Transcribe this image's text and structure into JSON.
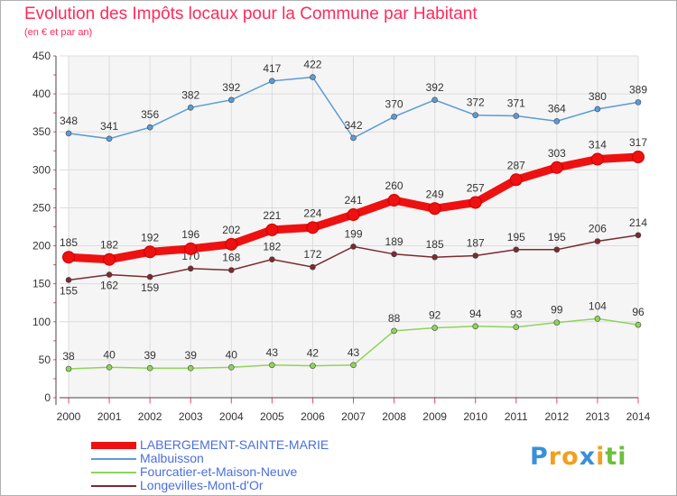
{
  "title": "Evolution des Impôts locaux pour la Commune par Habitant",
  "subtitle": "(en € et par an)",
  "logo": {
    "letters": [
      "P",
      "r",
      "o",
      "x",
      "i",
      "t",
      "i"
    ],
    "colors": [
      "#3a8fd9",
      "#f0a020",
      "#f0a020",
      "#3a8fd9",
      "#f0a020",
      "#6cbf3a",
      "#6cbf3a"
    ]
  },
  "chart_data": {
    "type": "line",
    "title": "Evolution des Impôts locaux pour la Commune par Habitant",
    "subtitle": "(en € et par an)",
    "xlabel": "",
    "ylabel": "",
    "categories": [
      "2000",
      "2001",
      "2002",
      "2003",
      "2004",
      "2005",
      "2006",
      "2007",
      "2008",
      "2009",
      "2010",
      "2011",
      "2012",
      "2013",
      "2014"
    ],
    "ylim": [
      0,
      450
    ],
    "yticks": [
      0,
      50,
      100,
      150,
      200,
      250,
      300,
      350,
      400,
      450
    ],
    "grid": true,
    "legend_position": "bottom-left",
    "series": [
      {
        "name": "Malbuisson",
        "color": "#5b9bd5",
        "emphasis": false,
        "values": [
          348,
          341,
          356,
          382,
          392,
          417,
          422,
          342,
          370,
          392,
          372,
          371,
          364,
          380,
          389
        ]
      },
      {
        "name": "Longevilles-Mont-d'Or",
        "color": "#7b2a30",
        "emphasis": false,
        "values": [
          155,
          162,
          159,
          170,
          168,
          182,
          172,
          199,
          189,
          185,
          187,
          195,
          195,
          206,
          214
        ]
      },
      {
        "name": "Fourcatier-et-Maison-Neuve",
        "color": "#8fd45a",
        "emphasis": false,
        "values": [
          38,
          40,
          39,
          39,
          40,
          43,
          42,
          43,
          88,
          92,
          94,
          93,
          99,
          104,
          96
        ]
      },
      {
        "name": "LABERGEMENT-SAINTE-MARIE",
        "color": "#ee1111",
        "emphasis": true,
        "values": [
          185,
          182,
          192,
          196,
          202,
          221,
          224,
          241,
          260,
          249,
          257,
          287,
          303,
          314,
          317
        ]
      }
    ],
    "legend_order": [
      "LABERGEMENT-SAINTE-MARIE",
      "Malbuisson",
      "Fourcatier-et-Maison-Neuve",
      "Longevilles-Mont-d'Or"
    ]
  }
}
